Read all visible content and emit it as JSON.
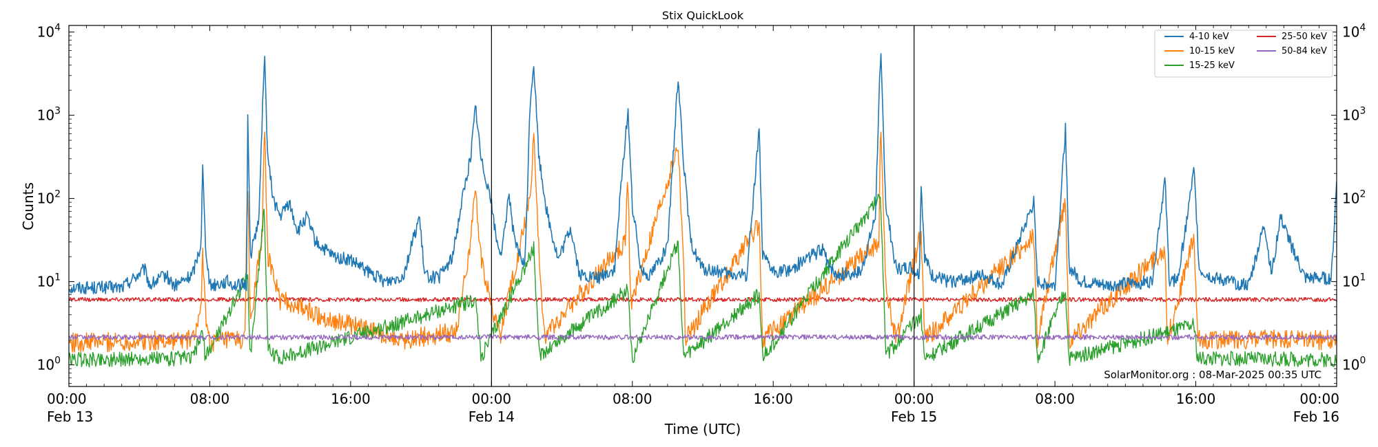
{
  "chart_data": {
    "type": "line",
    "title": "Stix QuickLook",
    "xlabel": "Time (UTC)",
    "ylabel": "Counts",
    "yscale": "log",
    "ylim": [
      0.55,
      12000
    ],
    "xlim_hours": [
      0,
      72
    ],
    "x_ticks": [
      {
        "hour": 0,
        "time": "00:00",
        "date": "Feb 13"
      },
      {
        "hour": 8,
        "time": "08:00",
        "date": ""
      },
      {
        "hour": 16,
        "time": "16:00",
        "date": ""
      },
      {
        "hour": 24,
        "time": "00:00",
        "date": "Feb 14"
      },
      {
        "hour": 32,
        "time": "08:00",
        "date": ""
      },
      {
        "hour": 40,
        "time": "16:00",
        "date": ""
      },
      {
        "hour": 48,
        "time": "00:00",
        "date": "Feb 15"
      },
      {
        "hour": 56,
        "time": "08:00",
        "date": ""
      },
      {
        "hour": 64,
        "time": "16:00",
        "date": ""
      },
      {
        "hour": 72,
        "time": "00:00",
        "date": "Feb 16"
      }
    ],
    "y_ticks": [
      {
        "value": 1,
        "exp": "0"
      },
      {
        "value": 10,
        "exp": "1"
      },
      {
        "value": 100,
        "exp": "2"
      },
      {
        "value": 1000,
        "exp": "3"
      },
      {
        "value": 10000,
        "exp": "4"
      }
    ],
    "y_tick_base": "10",
    "day_dividers_hours": [
      24,
      48
    ],
    "footer": "SolarMonitor.org : 08-Mar-2025 00:35 UTC",
    "series": [
      {
        "name": "4-10 keV",
        "color": "#1f77b4",
        "points": [
          [
            0,
            8.5
          ],
          [
            3,
            8.5
          ],
          [
            4.3,
            14
          ],
          [
            4.6,
            9
          ],
          [
            5.5,
            12
          ],
          [
            6,
            8.8
          ],
          [
            7,
            12
          ],
          [
            7.5,
            28
          ],
          [
            7.6,
            240
          ],
          [
            7.75,
            30
          ],
          [
            8,
            9
          ],
          [
            9,
            10
          ],
          [
            9.5,
            9
          ],
          [
            10.1,
            9
          ],
          [
            10.15,
            1550
          ],
          [
            10.3,
            20
          ],
          [
            10.8,
            60
          ],
          [
            11.1,
            5800
          ],
          [
            11.3,
            300
          ],
          [
            11.6,
            100
          ],
          [
            12,
            60
          ],
          [
            12.5,
            90
          ],
          [
            13,
            40
          ],
          [
            13.5,
            60
          ],
          [
            14,
            30
          ],
          [
            15,
            20
          ],
          [
            16,
            18
          ],
          [
            17,
            13
          ],
          [
            18,
            10
          ],
          [
            19,
            12
          ],
          [
            19.9,
            60
          ],
          [
            20.2,
            12
          ],
          [
            21,
            11
          ],
          [
            21.8,
            20
          ],
          [
            22.3,
            90
          ],
          [
            22.8,
            300
          ],
          [
            23.1,
            1300
          ],
          [
            23.4,
            300
          ],
          [
            23.9,
            120
          ],
          [
            24.3,
            30
          ],
          [
            24.6,
            22
          ],
          [
            25,
            120
          ],
          [
            25.3,
            30
          ],
          [
            25.9,
            15
          ],
          [
            26.2,
            1500
          ],
          [
            26.4,
            4200
          ],
          [
            26.7,
            300
          ],
          [
            27.2,
            60
          ],
          [
            27.8,
            18
          ],
          [
            28.5,
            45
          ],
          [
            29,
            12
          ],
          [
            30,
            11
          ],
          [
            31,
            14
          ],
          [
            31.3,
            100
          ],
          [
            31.75,
            1200
          ],
          [
            32,
            80
          ],
          [
            32.5,
            14
          ],
          [
            33,
            12
          ],
          [
            33.5,
            18
          ],
          [
            34,
            25
          ],
          [
            34.6,
            3000
          ],
          [
            34.9,
            300
          ],
          [
            35.3,
            30
          ],
          [
            36,
            14
          ],
          [
            37,
            13
          ],
          [
            37.5,
            12
          ],
          [
            38.5,
            12
          ],
          [
            39.2,
            700
          ],
          [
            39.4,
            20
          ],
          [
            40,
            13
          ],
          [
            41,
            14
          ],
          [
            42,
            20
          ],
          [
            42.8,
            24
          ],
          [
            43.5,
            12
          ],
          [
            45,
            13
          ],
          [
            45.8,
            60
          ],
          [
            46.1,
            6200
          ],
          [
            46.4,
            80
          ],
          [
            47,
            14
          ],
          [
            47.8,
            15
          ],
          [
            48.3,
            12
          ],
          [
            48.4,
            160
          ],
          [
            48.6,
            20
          ],
          [
            49,
            12
          ],
          [
            50,
            10
          ],
          [
            52,
            12
          ],
          [
            53,
            9
          ],
          [
            54.8,
            90
          ],
          [
            55,
            10
          ],
          [
            56,
            9
          ],
          [
            56.6,
            700
          ],
          [
            56.8,
            15
          ],
          [
            57.5,
            10
          ],
          [
            59,
            9
          ],
          [
            61.5,
            10
          ],
          [
            62.25,
            170
          ],
          [
            62.5,
            10
          ],
          [
            63,
            11
          ],
          [
            63.9,
            220
          ],
          [
            64.2,
            14
          ],
          [
            65,
            11
          ],
          [
            67,
            9
          ],
          [
            67.9,
            50
          ],
          [
            68.3,
            12
          ],
          [
            68.8,
            60
          ],
          [
            69.5,
            25
          ],
          [
            70.2,
            11
          ],
          [
            71.1,
            11
          ],
          [
            71.7,
            11
          ],
          [
            72,
            160
          ]
        ]
      },
      {
        "name": "10-15 keV",
        "color": "#ff7f0e",
        "points": [
          [
            0,
            1.85
          ],
          [
            3,
            1.9
          ],
          [
            7,
            2
          ],
          [
            7.5,
            4
          ],
          [
            7.6,
            25
          ],
          [
            7.75,
            4
          ],
          [
            8,
            1.9
          ],
          [
            10,
            2
          ],
          [
            10.15,
            210
          ],
          [
            10.3,
            3
          ],
          [
            11,
            40
          ],
          [
            11.1,
            900
          ],
          [
            11.3,
            20
          ],
          [
            12,
            6
          ],
          [
            13,
            5
          ],
          [
            14,
            4
          ],
          [
            16,
            3
          ],
          [
            19,
            2
          ],
          [
            22,
            2.5
          ],
          [
            22.8,
            30
          ],
          [
            23.1,
            120
          ],
          [
            23.4,
            20
          ],
          [
            24,
            5
          ],
          [
            24.5,
            2.2
          ],
          [
            26.2,
            100
          ],
          [
            26.4,
            570
          ],
          [
            26.7,
            20
          ],
          [
            27,
            2.2
          ],
          [
            31.6,
            30
          ],
          [
            31.75,
            180
          ],
          [
            31.9,
            5
          ],
          [
            34.6,
            430
          ],
          [
            34.9,
            20
          ],
          [
            35,
            2
          ],
          [
            39.2,
            50
          ],
          [
            39.4,
            2
          ],
          [
            46,
            30
          ],
          [
            46.1,
            850
          ],
          [
            46.4,
            8
          ],
          [
            47,
            2
          ],
          [
            48.4,
            40
          ],
          [
            48.6,
            2
          ],
          [
            54.8,
            35
          ],
          [
            55,
            2
          ],
          [
            56.6,
            100
          ],
          [
            56.8,
            2
          ],
          [
            62.25,
            25
          ],
          [
            62.4,
            2
          ],
          [
            63.9,
            35
          ],
          [
            64.1,
            2
          ],
          [
            72,
            2
          ]
        ]
      },
      {
        "name": "15-25 keV",
        "color": "#2ca02c",
        "points": [
          [
            0,
            1.15
          ],
          [
            7,
            1.2
          ],
          [
            7.6,
            2.5
          ],
          [
            7.75,
            1.2
          ],
          [
            10.15,
            12
          ],
          [
            10.3,
            1.2
          ],
          [
            11.1,
            80
          ],
          [
            11.3,
            1.5
          ],
          [
            12,
            1.2
          ],
          [
            23.1,
            6
          ],
          [
            23.4,
            1.2
          ],
          [
            26.4,
            25
          ],
          [
            26.7,
            1.3
          ],
          [
            31.75,
            8
          ],
          [
            32,
            1.2
          ],
          [
            34.6,
            30
          ],
          [
            34.9,
            1.2
          ],
          [
            39.2,
            7
          ],
          [
            39.4,
            1.2
          ],
          [
            46.1,
            110
          ],
          [
            46.4,
            1.3
          ],
          [
            48.4,
            4
          ],
          [
            48.6,
            1.2
          ],
          [
            54.8,
            7
          ],
          [
            55,
            1.2
          ],
          [
            56.6,
            8
          ],
          [
            56.8,
            1.2
          ],
          [
            63.9,
            3
          ],
          [
            64.1,
            1.2
          ],
          [
            72,
            1.15
          ]
        ]
      },
      {
        "name": "25-50 keV",
        "color": "#d62728",
        "points": [
          [
            0,
            6.1
          ],
          [
            72,
            6.1
          ]
        ]
      },
      {
        "name": "50-84 keV",
        "color": "#9467bd",
        "points": [
          [
            0,
            2.15
          ],
          [
            72,
            2.15
          ]
        ]
      }
    ]
  }
}
